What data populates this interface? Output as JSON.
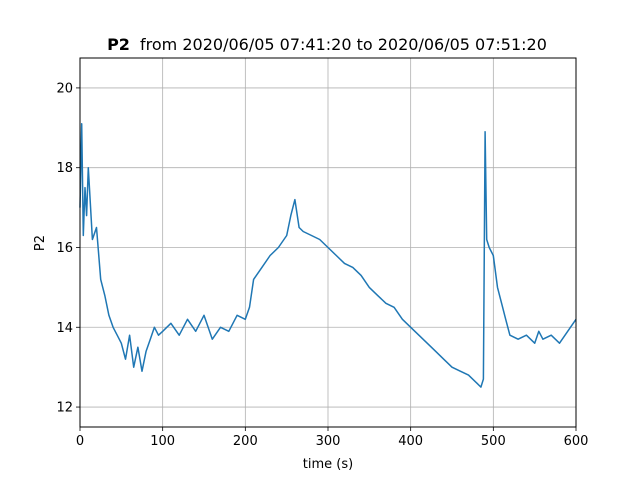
{
  "chart_data": {
    "type": "line",
    "title_bold": "P2",
    "title_rest": "from 2020/06/05 07:41:20 to 2020/06/05 07:51:20",
    "xlabel": "time (s)",
    "ylabel": "P2",
    "xlim": [
      0,
      600
    ],
    "ylim": [
      11.5,
      20.75
    ],
    "x_ticks": [
      0,
      100,
      200,
      300,
      400,
      500,
      600
    ],
    "y_ticks": [
      12,
      14,
      16,
      18,
      20
    ],
    "grid": true,
    "series_color": "#1f77b4",
    "series": [
      {
        "x": [
          0,
          2,
          4,
          6,
          8,
          10,
          15,
          20,
          25,
          30,
          35,
          40,
          45,
          50,
          55,
          60,
          65,
          70,
          75,
          80,
          85,
          90,
          95,
          100,
          110,
          120,
          130,
          140,
          150,
          160,
          170,
          180,
          190,
          200,
          205,
          210,
          220,
          230,
          240,
          250,
          255,
          260,
          265,
          270,
          280,
          290,
          300,
          310,
          320,
          330,
          340,
          350,
          360,
          370,
          380,
          390,
          400,
          410,
          420,
          430,
          440,
          450,
          460,
          470,
          480,
          485,
          488,
          490,
          492,
          495,
          500,
          505,
          510,
          515,
          520,
          530,
          540,
          550,
          555,
          560,
          570,
          580,
          590,
          600
        ],
        "y": [
          17.0,
          19.1,
          16.3,
          17.5,
          16.8,
          18.0,
          16.2,
          16.5,
          15.2,
          14.8,
          14.3,
          14.0,
          13.8,
          13.6,
          13.2,
          13.8,
          13.0,
          13.5,
          12.9,
          13.4,
          13.7,
          14.0,
          13.8,
          13.9,
          14.1,
          13.8,
          14.2,
          13.9,
          14.3,
          13.7,
          14.0,
          13.9,
          14.3,
          14.2,
          14.5,
          15.2,
          15.5,
          15.8,
          16.0,
          16.3,
          16.8,
          17.2,
          16.5,
          16.4,
          16.3,
          16.2,
          16.0,
          15.8,
          15.6,
          15.5,
          15.3,
          15.0,
          14.8,
          14.6,
          14.5,
          14.2,
          14.0,
          13.8,
          13.6,
          13.4,
          13.2,
          13.0,
          12.9,
          12.8,
          12.6,
          12.5,
          12.7,
          18.9,
          16.2,
          16.0,
          15.8,
          15.0,
          14.6,
          14.2,
          13.8,
          13.7,
          13.8,
          13.6,
          13.9,
          13.7,
          13.8,
          13.6,
          13.9,
          14.2
        ]
      }
    ]
  }
}
